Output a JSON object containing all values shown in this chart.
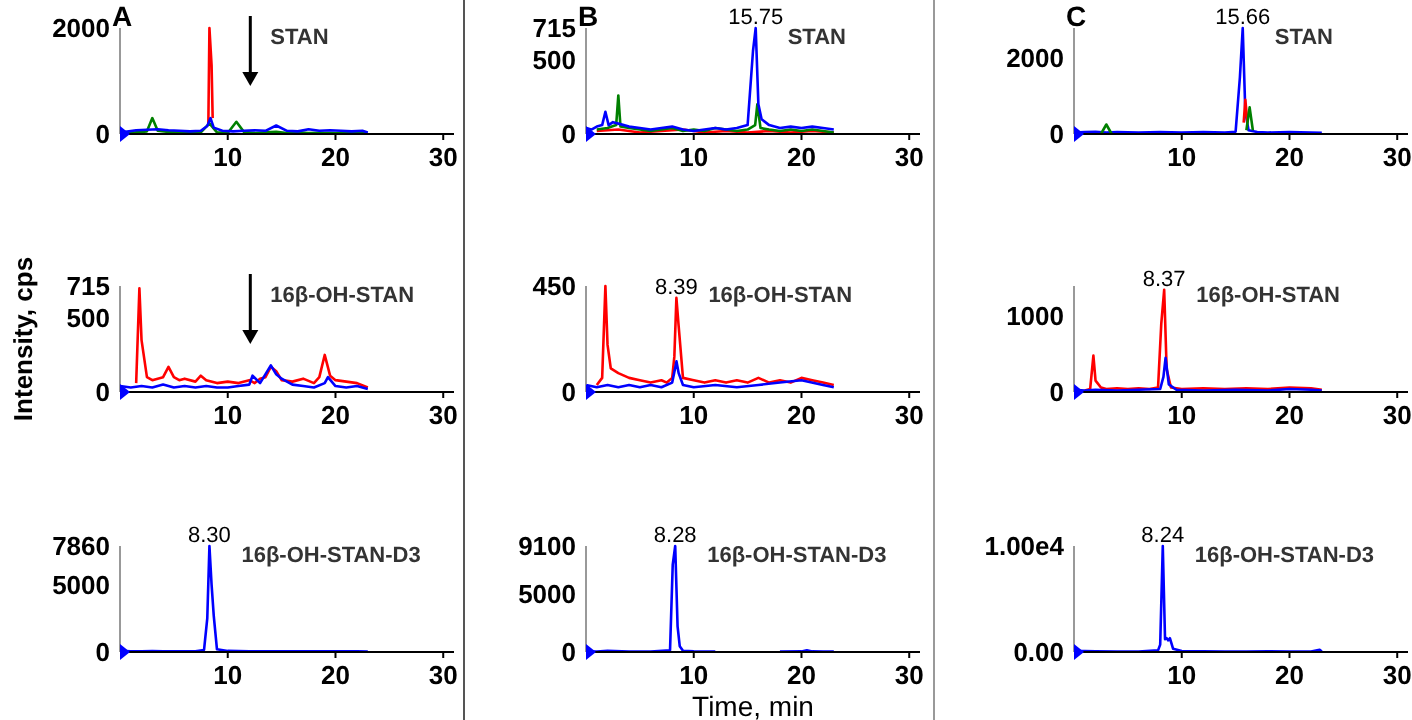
{
  "chart_data": [
    {
      "type": "line",
      "title": "A",
      "xlim": [
        0,
        31
      ],
      "xticks": [
        10,
        20,
        30
      ],
      "ylim": [
        0,
        2000
      ],
      "yticks": [
        0,
        2000
      ],
      "annotations": [
        "STAN"
      ],
      "series": [
        {
          "color": "#ff0000",
          "x": [
            8.2,
            8.3,
            8.5,
            8.6
          ],
          "values": [
            200,
            2000,
            1300,
            300
          ]
        },
        {
          "color": "#008000",
          "x": [
            0.5,
            1.5,
            2.5,
            3,
            3.5,
            4.5,
            5.5,
            6.5,
            7.5,
            8.3,
            9,
            10,
            10.8,
            11.5,
            12.5,
            13.5,
            14.5,
            15.5,
            16.5,
            17.5,
            18.5,
            19.5,
            20.5,
            21.5,
            22.5,
            23
          ],
          "values": [
            10,
            30,
            50,
            300,
            60,
            40,
            30,
            20,
            30,
            200,
            30,
            20,
            230,
            40,
            20,
            30,
            40,
            20,
            30,
            20,
            25,
            20,
            20,
            25,
            20,
            10
          ]
        },
        {
          "color": "#0000ff",
          "x": [
            0,
            0.5,
            1.5,
            2.5,
            3.5,
            4.5,
            5.5,
            6.5,
            7.5,
            8.1,
            8.4,
            8.7,
            9.5,
            10.5,
            11.5,
            12.5,
            13.5,
            14.5,
            15.5,
            16.5,
            17.5,
            18.5,
            19.5,
            20.5,
            21.5,
            22.5,
            23
          ],
          "values": [
            60,
            40,
            70,
            80,
            90,
            70,
            60,
            50,
            60,
            150,
            300,
            120,
            60,
            50,
            60,
            70,
            60,
            160,
            60,
            50,
            90,
            60,
            70,
            60,
            50,
            60,
            30
          ]
        }
      ]
    },
    {
      "type": "line",
      "title": "B",
      "xlim": [
        0,
        31
      ],
      "xticks": [
        10,
        20,
        30
      ],
      "ylim": [
        0,
        715
      ],
      "yticks": [
        0,
        500,
        715
      ],
      "annotations": [
        {
          "text": "15.75",
          "x": 15.75,
          "y": 715
        },
        "STAN"
      ],
      "series": [
        {
          "color": "#ff0000",
          "x": [
            1,
            3,
            5,
            7,
            9,
            11,
            13,
            15,
            17,
            19,
            21,
            23
          ],
          "values": [
            20,
            30,
            10,
            20,
            30,
            10,
            20,
            10,
            20,
            10,
            20,
            10
          ]
        },
        {
          "color": "#008000",
          "x": [
            1,
            2,
            2.8,
            3,
            3.2,
            4,
            5,
            6,
            7,
            8,
            9,
            10,
            11,
            12,
            13,
            14,
            15,
            15.7,
            15.9,
            16.2,
            17,
            18,
            19,
            20,
            21,
            22,
            23
          ],
          "values": [
            30,
            40,
            60,
            260,
            50,
            40,
            30,
            20,
            30,
            40,
            20,
            30,
            20,
            40,
            30,
            20,
            30,
            60,
            200,
            40,
            30,
            20,
            30,
            20,
            30,
            20,
            10
          ]
        },
        {
          "color": "#0000ff",
          "x": [
            0,
            0.5,
            1,
            1.5,
            1.8,
            2.1,
            2.5,
            3,
            4,
            5,
            6,
            7,
            8,
            9,
            10,
            11,
            12,
            13,
            14,
            15,
            15.5,
            15.75,
            16,
            16.3,
            17,
            18,
            19,
            20,
            21,
            22,
            23
          ],
          "values": [
            40,
            30,
            50,
            60,
            150,
            60,
            80,
            70,
            50,
            40,
            30,
            40,
            50,
            30,
            20,
            30,
            40,
            30,
            40,
            60,
            560,
            715,
            200,
            100,
            60,
            40,
            50,
            40,
            50,
            40,
            30
          ]
        }
      ]
    },
    {
      "type": "line",
      "title": "C",
      "xlim": [
        0,
        31
      ],
      "xticks": [
        10,
        20,
        30
      ],
      "ylim": [
        0,
        2790
      ],
      "yticks": [
        0,
        2000
      ],
      "annotations": [
        {
          "text": "15.66",
          "x": 15.66,
          "y": 2790
        },
        "STAN"
      ],
      "series": [
        {
          "color": "#0000ff",
          "x": [
            0,
            1,
            2,
            3,
            4,
            6,
            8,
            10,
            12,
            14,
            15,
            15.4,
            15.66,
            15.9,
            16.2,
            17,
            18,
            20,
            22,
            23
          ],
          "values": [
            40,
            50,
            60,
            40,
            50,
            40,
            50,
            40,
            50,
            40,
            60,
            1500,
            2790,
            600,
            100,
            50,
            40,
            50,
            40,
            30
          ]
        },
        {
          "color": "#ff0000",
          "x": [
            15.75,
            15.9,
            16.1
          ],
          "values": [
            300,
            900,
            300
          ]
        },
        {
          "color": "#008000",
          "x": [
            2.5,
            3,
            3.5
          ],
          "values": [
            0,
            250,
            0
          ]
        },
        {
          "color": "#008000",
          "x": [
            16,
            16.3,
            16.6
          ],
          "values": [
            100,
            700,
            100
          ]
        }
      ]
    },
    {
      "type": "line",
      "ylabel": "Intensity, cps",
      "xlim": [
        0,
        31
      ],
      "xticks": [
        10,
        20,
        30
      ],
      "ylim": [
        0,
        715
      ],
      "yticks": [
        0,
        500,
        715
      ],
      "annotations": [
        "16β-OH-STAN"
      ],
      "series": [
        {
          "color": "#ff0000",
          "x": [
            1.5,
            1.8,
            2,
            2.5,
            3,
            3.5,
            4,
            4.5,
            5,
            5.5,
            6,
            7,
            7.5,
            8,
            9,
            10,
            11,
            12,
            12.5,
            13,
            13.5,
            14,
            14.5,
            15,
            16,
            17,
            18,
            18.5,
            19,
            19.5,
            20,
            21,
            22,
            23
          ],
          "values": [
            60,
            700,
            350,
            100,
            80,
            90,
            100,
            170,
            100,
            80,
            90,
            70,
            110,
            80,
            60,
            70,
            60,
            80,
            60,
            90,
            100,
            170,
            140,
            80,
            70,
            90,
            60,
            100,
            250,
            110,
            80,
            70,
            60,
            30
          ]
        },
        {
          "color": "#0000ff",
          "x": [
            0,
            1,
            2,
            3,
            4,
            5,
            6,
            7,
            8,
            9,
            10,
            11,
            12,
            12.3,
            13,
            14,
            14.5,
            15,
            16,
            17,
            18,
            19,
            19.3,
            20,
            21,
            22,
            23
          ],
          "values": [
            40,
            30,
            40,
            30,
            50,
            30,
            40,
            30,
            40,
            30,
            30,
            40,
            50,
            110,
            60,
            180,
            120,
            90,
            50,
            40,
            30,
            60,
            100,
            40,
            30,
            40,
            20
          ]
        }
      ]
    },
    {
      "type": "line",
      "xlim": [
        0,
        31
      ],
      "xticks": [
        10,
        20,
        30
      ],
      "ylim": [
        0,
        450
      ],
      "yticks": [
        0,
        450
      ],
      "annotations": [
        {
          "text": "8.39",
          "x": 8.39,
          "y": 400
        },
        "16β-OH-STAN"
      ],
      "series": [
        {
          "color": "#ff0000",
          "x": [
            1,
            1.5,
            1.8,
            2,
            2.3,
            3,
            4,
            5,
            6,
            7,
            7.5,
            8,
            8.2,
            8.39,
            8.6,
            9,
            10,
            11,
            12,
            13,
            14,
            15,
            16,
            17,
            18,
            19,
            20,
            21,
            22,
            23
          ],
          "values": [
            30,
            60,
            450,
            200,
            100,
            80,
            60,
            50,
            40,
            50,
            40,
            60,
            150,
            400,
            280,
            60,
            50,
            40,
            50,
            40,
            50,
            40,
            60,
            40,
            50,
            40,
            60,
            50,
            40,
            30
          ]
        },
        {
          "color": "#0000ff",
          "x": [
            0,
            1,
            2,
            3,
            4,
            5,
            6,
            7,
            8,
            8.4,
            8.6,
            9,
            10,
            12,
            14,
            16,
            18,
            20,
            22,
            23
          ],
          "values": [
            30,
            20,
            30,
            20,
            30,
            20,
            30,
            20,
            40,
            130,
            80,
            30,
            20,
            30,
            20,
            30,
            40,
            50,
            30,
            20
          ]
        }
      ]
    },
    {
      "type": "line",
      "xlim": [
        0,
        31
      ],
      "xticks": [
        10,
        20,
        30
      ],
      "ylim": [
        0,
        1400
      ],
      "yticks": [
        0,
        1000
      ],
      "annotations": [
        {
          "text": "8.37",
          "x": 8.37,
          "y": 1350
        },
        "16β-OH-STAN"
      ],
      "series": [
        {
          "color": "#ff0000",
          "x": [
            1,
            1.5,
            1.8,
            2,
            2.5,
            3,
            4,
            5,
            6,
            7,
            7.8,
            8.1,
            8.37,
            8.6,
            9,
            10,
            12,
            14,
            16,
            18,
            20,
            22,
            23
          ],
          "values": [
            20,
            40,
            480,
            150,
            60,
            40,
            50,
            40,
            50,
            40,
            60,
            900,
            1350,
            300,
            60,
            40,
            50,
            40,
            50,
            40,
            60,
            50,
            30
          ]
        },
        {
          "color": "#0000ff",
          "x": [
            0,
            1,
            2,
            4,
            6,
            8,
            8.3,
            8.5,
            8.8,
            9.5,
            12,
            15,
            18,
            20,
            22,
            23
          ],
          "values": [
            30,
            20,
            30,
            20,
            30,
            40,
            200,
            450,
            100,
            30,
            20,
            30,
            20,
            40,
            30,
            20
          ]
        }
      ]
    },
    {
      "type": "line",
      "xlim": [
        0,
        31
      ],
      "xticks": [
        10,
        20,
        30
      ],
      "ylim": [
        0,
        7860
      ],
      "yticks": [
        0,
        5000,
        7860
      ],
      "annotations": [
        {
          "text": "8.30",
          "x": 8.3,
          "y": 7860
        },
        "16β-OH-STAN-D3"
      ],
      "series": [
        {
          "color": "#0000ff",
          "x": [
            0,
            1,
            2,
            3,
            4,
            5,
            6,
            7,
            7.8,
            8.1,
            8.3,
            8.5,
            8.7,
            9,
            10,
            12,
            14,
            16,
            18,
            20,
            22,
            23
          ],
          "values": [
            80,
            60,
            50,
            70,
            60,
            50,
            60,
            50,
            150,
            2500,
            7860,
            5000,
            2700,
            200,
            80,
            60,
            50,
            60,
            50,
            60,
            50,
            40
          ]
        }
      ]
    },
    {
      "type": "line",
      "xlabel": "Time, min",
      "xlim": [
        0,
        31
      ],
      "xticks": [
        10,
        20,
        30
      ],
      "ylim": [
        0,
        9100
      ],
      "yticks": [
        0,
        5000,
        9100
      ],
      "annotations": [
        {
          "text": "8.28",
          "x": 8.28,
          "y": 9100
        },
        "16β-OH-STAN-D3"
      ],
      "series": [
        {
          "color": "#0000ff",
          "x": [
            0,
            1,
            2,
            4,
            6,
            7.8,
            8.05,
            8.28,
            8.5,
            8.7,
            9,
            10,
            12,
            14,
            16,
            18,
            20,
            20.5,
            21,
            22,
            23
          ],
          "values": [
            50,
            40,
            100,
            40,
            30,
            150,
            7500,
            9100,
            2200,
            500,
            100,
            50,
            30,
            null,
            null,
            40,
            50,
            150,
            50,
            40,
            30
          ]
        }
      ]
    },
    {
      "type": "line",
      "xlim": [
        0,
        31
      ],
      "xticks": [
        10,
        20,
        30
      ],
      "ylim": [
        0,
        10000
      ],
      "yticks": [
        {
          "value": 0,
          "label": "0.00"
        },
        {
          "value": 10000,
          "label": "1.00e4"
        }
      ],
      "annotations": [
        {
          "text": "8.24",
          "x": 8.24,
          "y": 10000
        },
        "16β-OH-STAN-D3"
      ],
      "series": [
        {
          "color": "#0000ff",
          "x": [
            0,
            1,
            2,
            4,
            6,
            7.8,
            8.0,
            8.24,
            8.45,
            8.6,
            8.75,
            8.9,
            9.2,
            10,
            12,
            14,
            16,
            18,
            20,
            22,
            22.8,
            23
          ],
          "values": [
            100,
            80,
            60,
            50,
            40,
            150,
            700,
            10000,
            1200,
            1300,
            1100,
            1300,
            300,
            100,
            60,
            50,
            40,
            60,
            50,
            40,
            200,
            40
          ]
        }
      ]
    }
  ]
}
